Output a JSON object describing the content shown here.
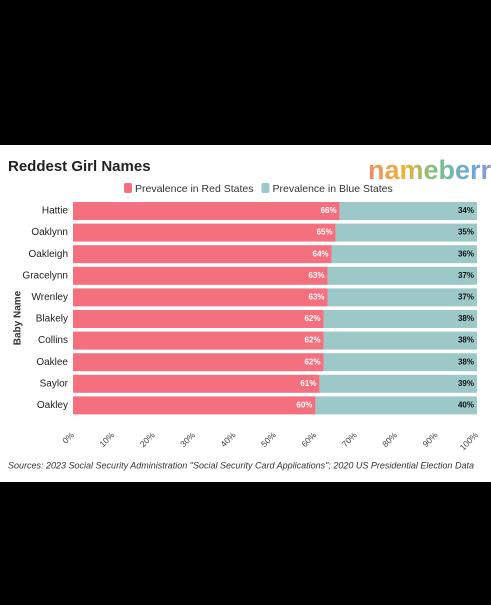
{
  "chart_data": {
    "type": "stacked-bar-horizontal",
    "title": "Reddest Girl Names",
    "logo": "nameberry",
    "y_label": "Baby Name",
    "source": "Sources: 2023 Social Security Administration \"Social Security Card Applications\"; 2020 US Presidential Election Data",
    "categories": [
      "Hattie",
      "Oaklynn",
      "Oakleigh",
      "Gracelynn",
      "Wrenley",
      "Blakely",
      "Collins",
      "Oaklee",
      "Saylor",
      "Oakley"
    ],
    "series": [
      {
        "name": "Prevalence in Red States",
        "color": "#f4707f",
        "values": [
          66,
          65,
          64,
          63,
          63,
          62,
          62,
          62,
          61,
          60
        ],
        "value_labels": [
          "66%",
          "65%",
          "64%",
          "63%",
          "63%",
          "62%",
          "62%",
          "62%",
          "61%",
          "60%"
        ]
      },
      {
        "name": "Prevalence in Blue States",
        "color": "#9cc8c8",
        "values": [
          34,
          35,
          36,
          37,
          37,
          38,
          38,
          38,
          39,
          40
        ],
        "value_labels": [
          "34%",
          "35%",
          "36%",
          "37%",
          "37%",
          "38%",
          "38%",
          "38%",
          "39%",
          "40%"
        ]
      }
    ],
    "xlim": [
      0,
      100
    ],
    "xticks": [
      {
        "value": 0,
        "label": "0%"
      },
      {
        "value": 10,
        "label": "10%"
      },
      {
        "value": 20,
        "label": "20%"
      },
      {
        "value": 30,
        "label": "30%"
      },
      {
        "value": 40,
        "label": "40%"
      },
      {
        "value": 50,
        "label": "50%"
      },
      {
        "value": 60,
        "label": "60%"
      },
      {
        "value": 70,
        "label": "70%"
      },
      {
        "value": 80,
        "label": "80%"
      },
      {
        "value": 90,
        "label": "90%"
      },
      {
        "value": 100,
        "label": "100%"
      }
    ]
  }
}
